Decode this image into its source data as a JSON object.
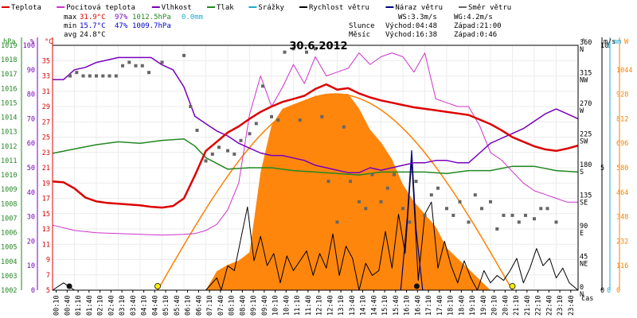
{
  "chart_data": {
    "type": "line",
    "title": "30.6.2012",
    "legend": [
      {
        "label": "Teplota",
        "color": "#dd0000"
      },
      {
        "label": "Pocitová teplota",
        "color": "#cc33cc"
      },
      {
        "label": "Vlhkost",
        "color": "#7700bb"
      },
      {
        "label": "Tlak",
        "color": "#228822"
      },
      {
        "label": "Srážky",
        "color": "#22aacc"
      },
      {
        "label": "Rychlost větru",
        "color": "#000000"
      },
      {
        "label": "Náraz větru",
        "color": "#000088"
      },
      {
        "label": "Směr větru",
        "color": "#666666"
      }
    ],
    "stats": {
      "max_label": "max",
      "max_temp": "31.9°C",
      "max_hum": "97%",
      "max_press": "1012.5hPa",
      "max_rain": "0.0mm",
      "min_label": "min",
      "min_temp": "15.7°C",
      "min_hum": "47%",
      "min_press": "1009.7hPa",
      "avg_label": "avg",
      "avg_temp": "24.8°C"
    },
    "wind_info": {
      "ws": "WS:3.3m/s",
      "wg": "WG:4.2m/s"
    },
    "sun_info": {
      "label": "Slunce",
      "rise": "Východ:04:48",
      "set": "Západ:21:00"
    },
    "moon_info": {
      "label": "Měsíc",
      "rise": "Východ:16:38",
      "set": "Západ:0:46"
    },
    "axis_units": {
      "hpa": "hPa",
      "pct": "%",
      "temp": "°C",
      "deg": "°",
      "ms": "m/s",
      "mm": "mm",
      "w": "W",
      "time": "čas"
    },
    "axes": {
      "temp": {
        "min": 5,
        "max": 37,
        "ticks": [
          5,
          7,
          9,
          11,
          13,
          15,
          17,
          19,
          21,
          23,
          25,
          27,
          29,
          31,
          33,
          35
        ]
      },
      "humidity": {
        "min": 0,
        "max": 100,
        "ticks": [
          0,
          10,
          20,
          30,
          40,
          50,
          60,
          70,
          80,
          90,
          100
        ]
      },
      "pressure": {
        "min": 1002,
        "max": 1019,
        "ticks": [
          1002,
          1003,
          1004,
          1005,
          1006,
          1007,
          1008,
          1009,
          1010,
          1011,
          1012,
          1013,
          1014,
          1015,
          1016,
          1017,
          1018,
          1019
        ]
      },
      "wind_dir": {
        "ticks": [
          {
            "deg": "0",
            "dir": "N"
          },
          {
            "deg": "45",
            "dir": "NE"
          },
          {
            "deg": "90",
            "dir": "E"
          },
          {
            "deg": "135",
            "dir": "SE"
          },
          {
            "deg": "180",
            "dir": "S"
          },
          {
            "deg": "225",
            "dir": "SW"
          },
          {
            "deg": "270",
            "dir": "W"
          },
          {
            "deg": "315",
            "dir": "NW"
          },
          {
            "deg": "360",
            "dir": "N"
          }
        ]
      },
      "wind_speed": {
        "min": 0,
        "max": 10,
        "ticks": [
          0,
          5,
          10
        ]
      },
      "rain": {
        "min": 0,
        "max": 1,
        "ticks": [
          0,
          1
        ]
      },
      "solar": {
        "min": 0,
        "max": 1160,
        "ticks": [
          0,
          116,
          232,
          348,
          464,
          580,
          696,
          812,
          928,
          1044
        ]
      },
      "time_ticks": [
        "00:10",
        "00:40",
        "01:10",
        "01:40",
        "02:10",
        "02:40",
        "03:10",
        "03:40",
        "04:10",
        "04:40",
        "05:10",
        "05:40",
        "06:10",
        "06:40",
        "07:10",
        "07:40",
        "08:10",
        "08:40",
        "09:10",
        "09:40",
        "10:10",
        "10:40",
        "11:10",
        "11:40",
        "12:10",
        "12:40",
        "13:10",
        "13:40",
        "14:10",
        "14:40",
        "15:10",
        "15:40",
        "16:10",
        "16:40",
        "17:10",
        "17:40",
        "18:10",
        "18:40",
        "19:10",
        "19:40",
        "20:10",
        "20:40",
        "21:10",
        "21:40",
        "22:10",
        "22:40",
        "23:10",
        "23:40"
      ]
    },
    "series": [
      {
        "name": "Teplota",
        "unit": "°C",
        "color": "#dd0000",
        "x": [
          0.0,
          0.5,
          1.0,
          1.5,
          2.0,
          2.5,
          3.0,
          3.5,
          4.0,
          4.5,
          5.0,
          5.5,
          6.0,
          6.5,
          7.0,
          7.5,
          8.0,
          8.5,
          9.0,
          9.5,
          10.0,
          10.5,
          11.0,
          11.5,
          12.0,
          12.5,
          13.0,
          13.5,
          14.0,
          14.5,
          15.0,
          15.5,
          16.0,
          16.5,
          17.0,
          17.5,
          18.0,
          18.5,
          19.0,
          19.5,
          20.0,
          20.5,
          21.0,
          21.5,
          22.0,
          22.5,
          23.0,
          23.5,
          24.0
        ],
        "y": [
          19.2,
          19.1,
          18.3,
          17.1,
          16.6,
          16.4,
          16.3,
          16.2,
          16.1,
          15.9,
          15.8,
          16.0,
          17.0,
          20.0,
          23.2,
          24.4,
          25.6,
          26.4,
          27.4,
          28.3,
          29.0,
          29.6,
          30.0,
          30.4,
          31.3,
          31.9,
          31.2,
          31.4,
          30.7,
          30.2,
          29.8,
          29.5,
          29.2,
          28.9,
          28.7,
          28.5,
          28.3,
          28.1,
          27.9,
          27.3,
          26.7,
          25.9,
          25.0,
          24.4,
          23.8,
          23.4,
          23.2,
          23.5,
          23.9
        ]
      },
      {
        "name": "Pocitová teplota",
        "unit": "°C",
        "color": "#cc33cc",
        "x": [
          0.0,
          1.0,
          2.0,
          3.0,
          4.0,
          5.0,
          6.0,
          6.5,
          7.0,
          7.5,
          8.0,
          8.5,
          9.0,
          9.5,
          10.0,
          10.5,
          11.0,
          11.5,
          12.0,
          12.5,
          13.0,
          13.5,
          14.0,
          14.5,
          15.0,
          15.5,
          16.0,
          16.5,
          17.0,
          17.5,
          18.0,
          18.5,
          19.0,
          19.5,
          20.0,
          20.5,
          21.0,
          21.5,
          22.0,
          22.5,
          23.0,
          23.5,
          24.0
        ],
        "y": [
          13.5,
          12.8,
          12.5,
          12.4,
          12.3,
          12.2,
          12.3,
          12.4,
          12.8,
          13.6,
          15.5,
          19.0,
          28.0,
          33.0,
          29.0,
          31.5,
          34.5,
          32.0,
          35.5,
          33.0,
          33.5,
          34.0,
          36.0,
          34.5,
          35.5,
          36.0,
          35.5,
          33.5,
          36.0,
          30.0,
          29.5,
          29.0,
          29.0,
          26.5,
          23.0,
          22.0,
          20.5,
          19.0,
          18.0,
          17.5,
          17.0,
          16.5,
          16.5
        ]
      },
      {
        "name": "Vlhkost",
        "unit": "%",
        "color": "#7700bb",
        "x": [
          0.0,
          0.5,
          1.0,
          1.5,
          2.0,
          2.5,
          3.0,
          3.5,
          4.0,
          4.5,
          5.0,
          5.5,
          6.0,
          6.5,
          7.0,
          7.5,
          8.0,
          8.5,
          9.0,
          9.5,
          10.0,
          10.5,
          11.0,
          11.5,
          12.0,
          12.5,
          13.0,
          13.5,
          14.0,
          14.5,
          15.0,
          15.5,
          16.0,
          16.5,
          17.0,
          17.5,
          18.0,
          18.5,
          19.0,
          19.5,
          20.0,
          20.5,
          21.0,
          21.5,
          22.0,
          22.5,
          23.0,
          23.5,
          24.0
        ],
        "y": [
          86,
          86,
          90,
          91,
          93,
          94,
          95,
          95,
          95,
          95,
          92,
          90,
          83,
          71,
          68,
          65,
          63,
          60,
          58,
          56,
          55,
          55,
          54,
          53,
          51,
          50,
          49,
          48,
          48,
          50,
          49,
          50,
          51,
          52,
          52,
          53,
          53,
          52,
          52,
          56,
          60,
          62,
          64,
          66,
          69,
          72,
          74,
          72,
          70
        ]
      },
      {
        "name": "Tlak",
        "unit": "hPa",
        "color": "#228822",
        "x": [
          0.0,
          1.0,
          2.0,
          3.0,
          4.0,
          5.0,
          6.0,
          6.5,
          7.0,
          8.0,
          9.0,
          10.0,
          11.0,
          12.0,
          13.0,
          14.0,
          15.0,
          16.0,
          17.0,
          18.0,
          19.0,
          20.0,
          21.0,
          22.0,
          23.0,
          24.0
        ],
        "y": [
          1011.5,
          1011.8,
          1012.1,
          1012.3,
          1012.2,
          1012.4,
          1012.5,
          1012.0,
          1011.2,
          1010.4,
          1010.5,
          1010.5,
          1010.3,
          1010.2,
          1010.1,
          1010.0,
          1010.2,
          1010.2,
          1010.2,
          1010.1,
          1010.3,
          1010.3,
          1010.6,
          1010.6,
          1010.3,
          1010.2
        ]
      },
      {
        "name": "Srážky",
        "unit": "mm",
        "color": "#22aacc",
        "x": [
          0.0,
          24.0
        ],
        "y": [
          0.0,
          0.0
        ]
      },
      {
        "name": "Rychlost větru",
        "unit": "m/s",
        "color": "#000000",
        "x": [
          0.0,
          0.5,
          1.0,
          1.5,
          2.0,
          2.5,
          3.0,
          3.5,
          4.0,
          4.5,
          5.0,
          5.5,
          6.0,
          6.5,
          7.0,
          7.5,
          7.7,
          8.0,
          8.3,
          8.6,
          8.9,
          9.2,
          9.5,
          9.8,
          10.1,
          10.4,
          10.7,
          11.0,
          11.3,
          11.6,
          11.9,
          12.2,
          12.5,
          12.8,
          13.1,
          13.4,
          13.7,
          14.0,
          14.3,
          14.6,
          14.9,
          15.2,
          15.5,
          15.8,
          16.1,
          16.4,
          16.7,
          17.0,
          17.3,
          17.6,
          17.9,
          18.2,
          18.5,
          18.8,
          19.1,
          19.4,
          19.7,
          20.0,
          20.3,
          20.6,
          20.9,
          21.2,
          21.5,
          21.8,
          22.1,
          22.4,
          22.7,
          23.0,
          23.3,
          23.6,
          24.0
        ],
        "y": [
          0.0,
          0.3,
          0.0,
          0.0,
          0.0,
          0.0,
          0.0,
          0.0,
          0.0,
          0.0,
          0.0,
          0.0,
          0.0,
          0.0,
          0.0,
          0.5,
          0.0,
          1.0,
          0.8,
          2.1,
          3.4,
          1.2,
          2.2,
          1.0,
          1.5,
          0.3,
          1.4,
          0.8,
          1.2,
          1.6,
          0.6,
          1.5,
          0.9,
          2.3,
          0.6,
          1.8,
          1.3,
          0.0,
          1.1,
          0.6,
          0.8,
          2.4,
          0.9,
          3.1,
          1.5,
          5.3,
          0.4,
          3.1,
          3.6,
          0.9,
          2.0,
          1.0,
          0.3,
          1.2,
          0.5,
          0.0,
          0.8,
          0.3,
          0.6,
          0.4,
          0.8,
          1.3,
          0.3,
          0.9,
          1.7,
          1.0,
          1.3,
          0.5,
          0.9,
          0.3,
          0.0
        ]
      },
      {
        "name": "Náraz větru",
        "unit": "m/s",
        "color": "#000088",
        "x": [
          15.9,
          16.2,
          16.4,
          16.6,
          16.9
        ],
        "y": [
          0.0,
          3.0,
          5.7,
          2.5,
          0.0
        ]
      },
      {
        "name": "Solar",
        "unit": "W",
        "color": "#ff8000",
        "x": [
          7.0,
          7.5,
          8.0,
          8.5,
          9.0,
          9.5,
          10.0,
          10.5,
          11.0,
          11.5,
          12.0,
          12.5,
          13.0,
          13.5,
          14.0,
          14.5,
          15.0,
          15.5,
          16.0,
          16.5,
          17.0,
          17.5,
          18.0,
          18.5,
          19.0,
          19.5,
          20.0
        ],
        "y": [
          0,
          90,
          120,
          140,
          180,
          560,
          780,
          860,
          880,
          900,
          920,
          930,
          930,
          930,
          860,
          760,
          700,
          620,
          500,
          420,
          360,
          300,
          200,
          150,
          100,
          50,
          0
        ]
      }
    ],
    "wind_direction_points": {
      "unit": "°",
      "x": [
        0.8,
        1.1,
        1.4,
        1.7,
        2.0,
        2.3,
        2.6,
        2.9,
        3.2,
        3.5,
        3.8,
        4.1,
        4.4,
        5.0,
        6.0,
        6.3,
        6.6,
        7.0,
        7.3,
        7.6,
        8.0,
        8.3,
        8.6,
        9.0,
        9.3,
        9.6,
        10.0,
        10.3,
        10.6,
        11.0,
        11.3,
        11.6,
        12.0,
        12.3,
        12.6,
        13.0,
        13.3,
        13.6,
        14.0,
        14.3,
        14.6,
        15.0,
        15.3,
        15.6,
        16.0,
        16.3,
        16.6,
        17.0,
        17.3,
        17.6,
        18.0,
        18.3,
        18.6,
        19.0,
        19.3,
        19.6,
        20.0,
        20.3,
        20.6,
        21.0,
        21.3,
        21.6,
        22.0,
        22.3,
        22.6,
        23.0
      ],
      "y": [
        315,
        320,
        315,
        315,
        315,
        315,
        315,
        315,
        330,
        335,
        330,
        330,
        320,
        335,
        345,
        270,
        235,
        190,
        200,
        210,
        205,
        200,
        220,
        230,
        245,
        300,
        255,
        250,
        350,
        355,
        250,
        350,
        355,
        255,
        160,
        100,
        240,
        160,
        130,
        120,
        170,
        130,
        150,
        170,
        120,
        100,
        160,
        110,
        140,
        150,
        120,
        110,
        130,
        100,
        140,
        120,
        130,
        90,
        110,
        110,
        100,
        110,
        105,
        120,
        120,
        100
      ]
    },
    "markers": {
      "sunrise": "04:48",
      "sunset": "21:00",
      "moonset": "00:46",
      "moonrise": "16:38"
    }
  }
}
